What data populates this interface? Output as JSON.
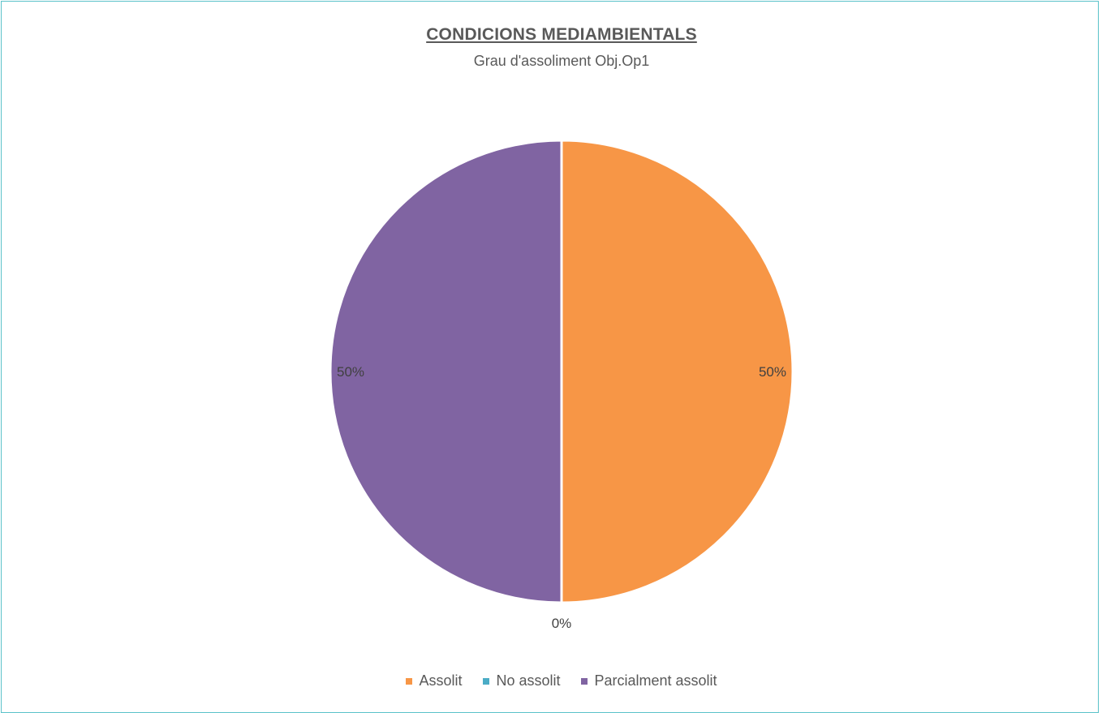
{
  "chart_data": {
    "type": "pie",
    "title": "CONDICIONS MEDIAMBIENTALS",
    "subtitle": "Grau d'assoliment Obj.Op1",
    "categories": [
      "Assolit",
      "No assolit",
      "Parcialment assolit"
    ],
    "values": [
      50,
      0,
      50
    ],
    "data_labels": [
      "50%",
      "0%",
      "50%"
    ],
    "colors": [
      "#f79646",
      "#4bacc6",
      "#8064a2"
    ],
    "legend_position": "bottom"
  }
}
